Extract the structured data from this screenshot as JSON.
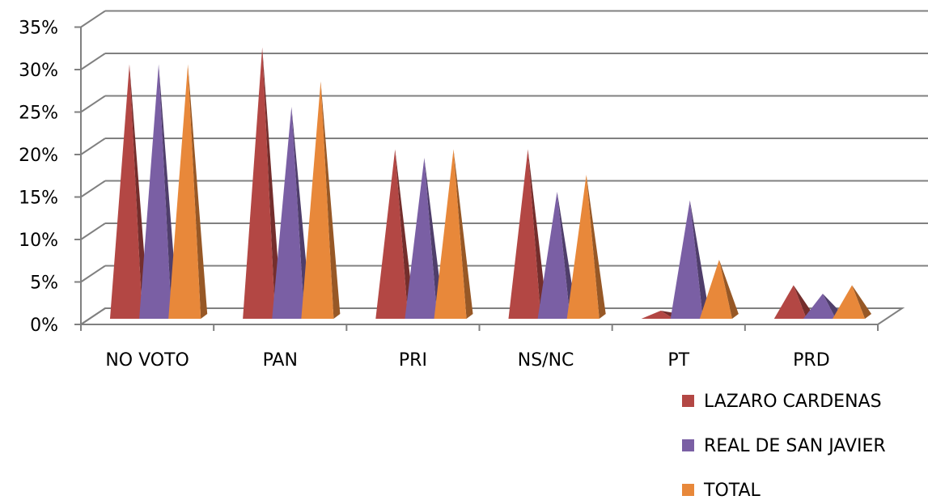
{
  "chart_data": {
    "type": "bar",
    "style": "3d-pyramid",
    "categories": [
      "NO VOTO",
      "PAN",
      "PRI",
      "NS/NC",
      "PT",
      "PRD"
    ],
    "series": [
      {
        "name": "LAZARO CARDENAS",
        "values": [
          29,
          31,
          19,
          19,
          0,
          3
        ],
        "color": "#b34744"
      },
      {
        "name": "REAL DE SAN JAVIER",
        "values": [
          29,
          24,
          18,
          14,
          13,
          2
        ],
        "color": "#7a5fa4"
      },
      {
        "name": "TOTAL",
        "values": [
          29,
          27,
          19,
          16,
          6,
          3
        ],
        "color": "#e8883a"
      }
    ],
    "yticks": [
      "0%",
      "5%",
      "10%",
      "15%",
      "20%",
      "25%",
      "30%",
      "35%"
    ],
    "ylim": [
      0,
      35
    ],
    "grid": true,
    "legend_position": "bottom-right"
  }
}
